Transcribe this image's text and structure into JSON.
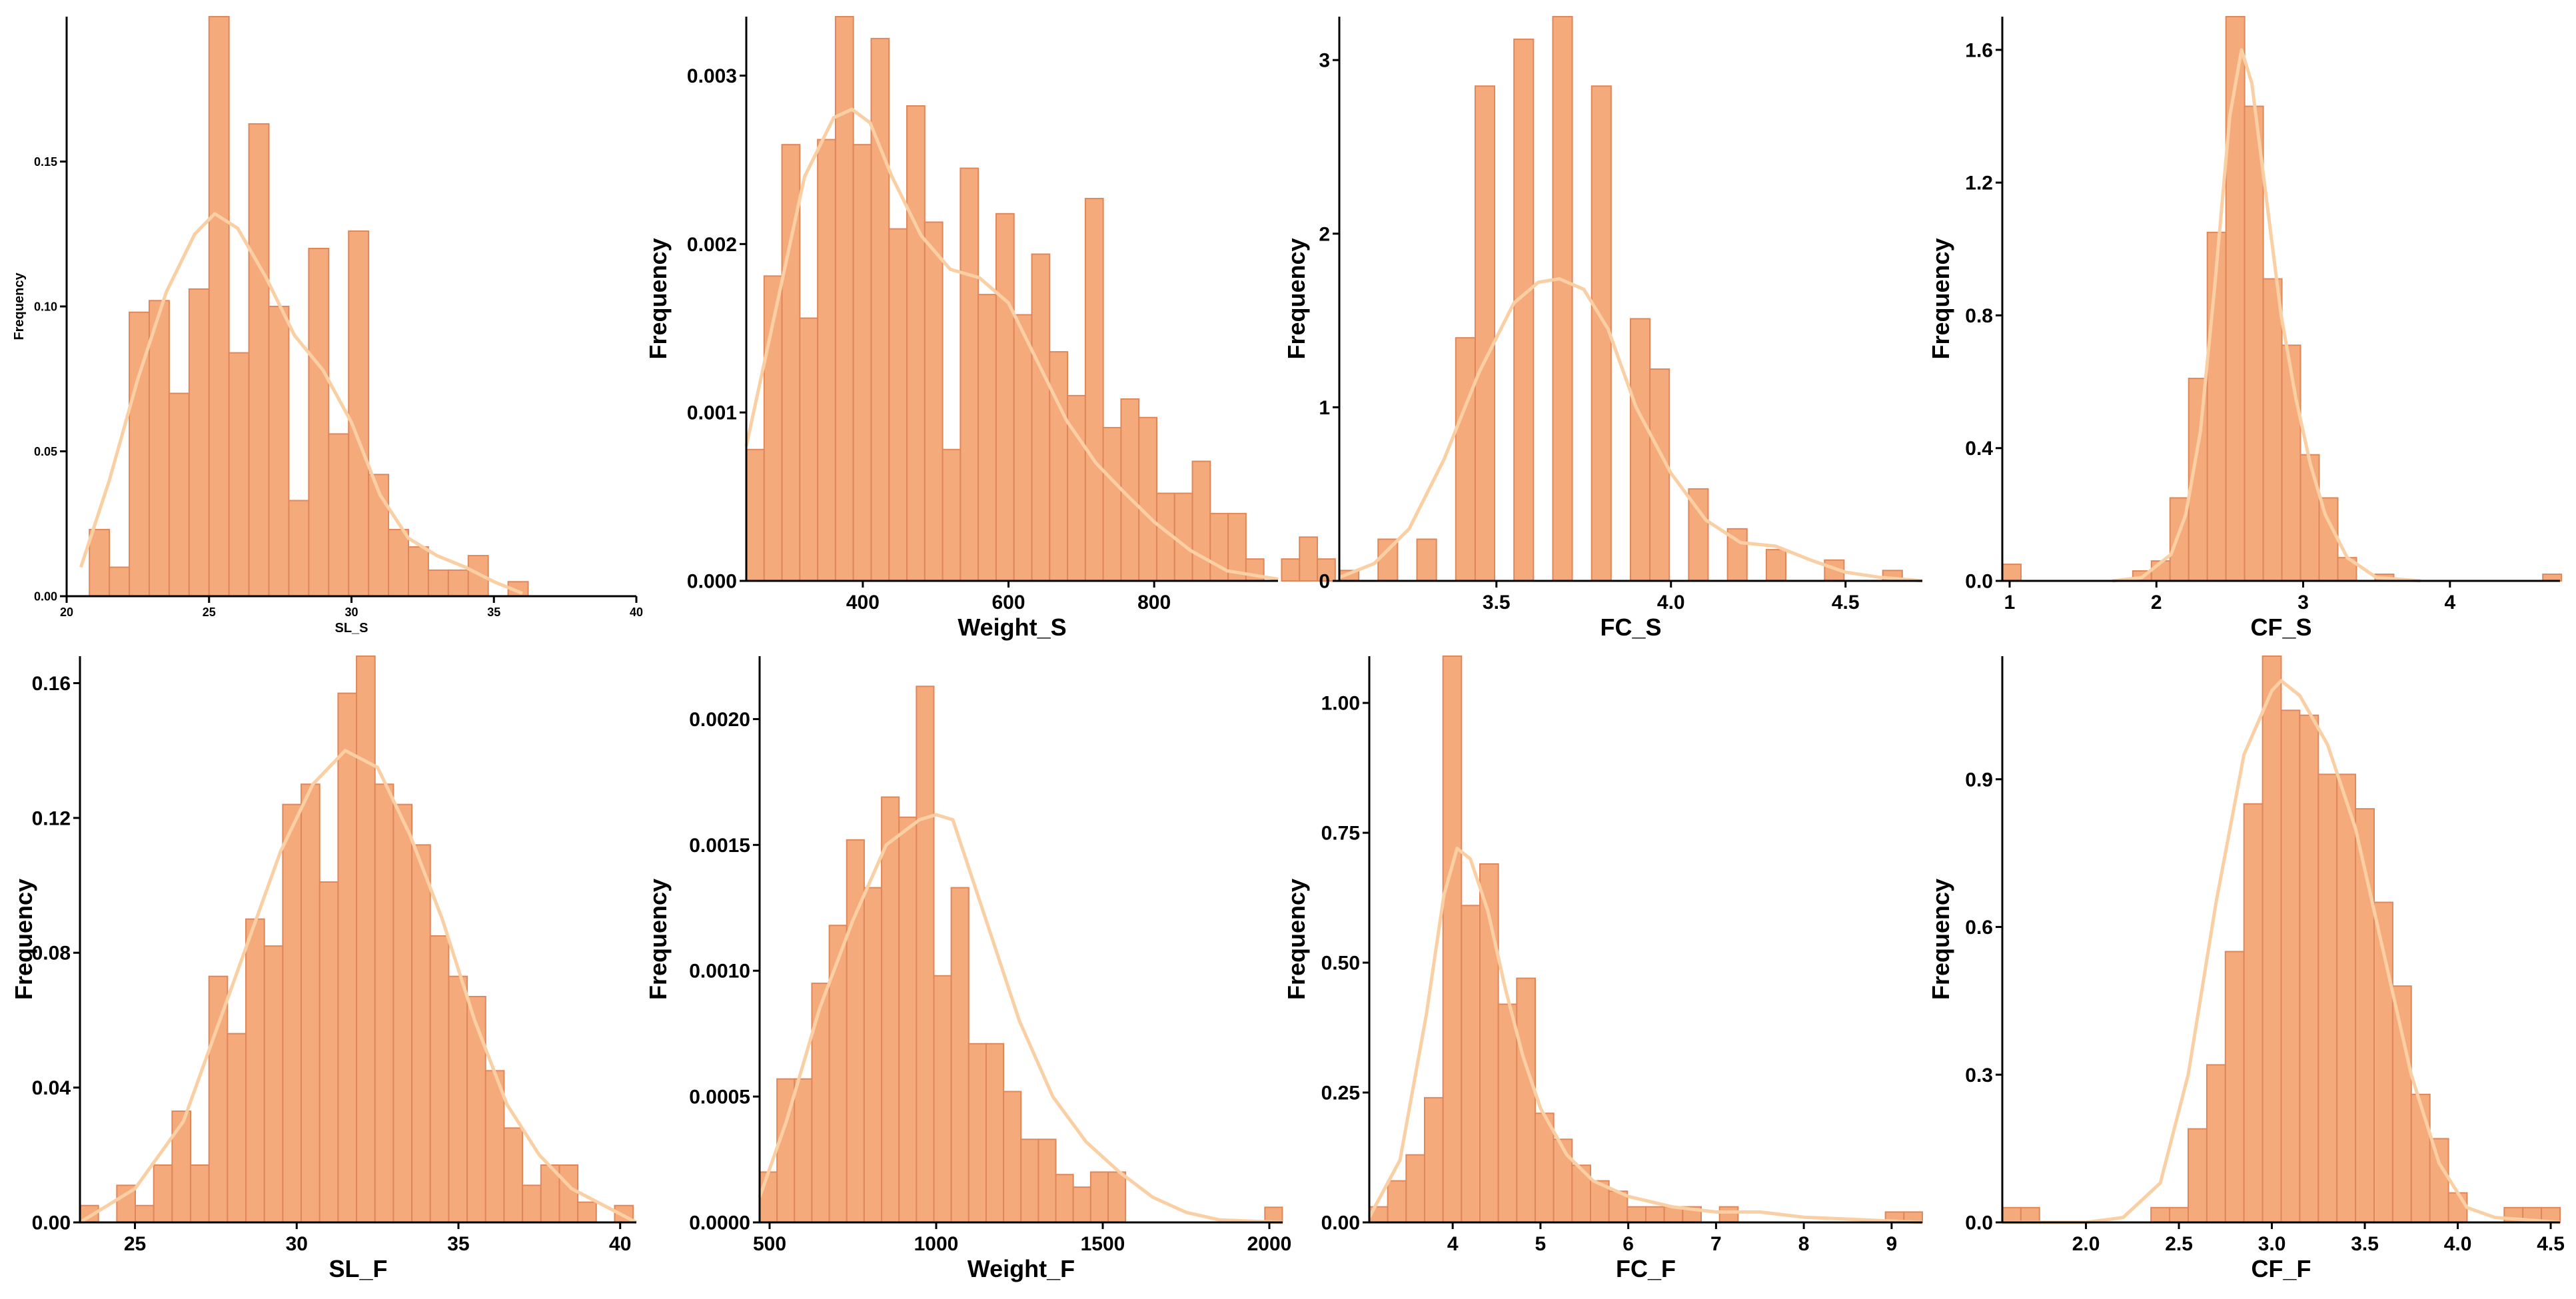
{
  "style": {
    "bar_fill": "#F5AA7C",
    "bar_stroke": "#E0875A",
    "density_color": "#F9CFA3",
    "axis_color": "#000000"
  },
  "chart_data": [
    {
      "type": "bar",
      "title": "",
      "xlabel": "SL_S",
      "ylabel": "Frequency",
      "xlim": [
        20,
        40
      ],
      "ylim": [
        0,
        0.2
      ],
      "xticks": [
        20,
        25,
        30,
        35,
        40
      ],
      "xtick_labels": [
        "20",
        "25",
        "30",
        "35",
        "40"
      ],
      "yticks": [
        0,
        0.05,
        0.1,
        0.15
      ],
      "ytick_labels": [
        "0.00",
        "0.05",
        "0.10",
        "0.15"
      ],
      "bin_start": 20.8,
      "bin_width": 0.7,
      "values": [
        0.023,
        0.01,
        0.098,
        0.102,
        0.07,
        0.106,
        0.2,
        0.084,
        0.163,
        0.1,
        0.033,
        0.12,
        0.056,
        0.126,
        0.042,
        0.023,
        0.017,
        0.009,
        0.009,
        0.014,
        0.0,
        0.005
      ],
      "density": {
        "x": [
          20.5,
          21.5,
          22.5,
          23.5,
          24.5,
          25.2,
          26,
          27,
          28,
          29,
          30,
          31,
          32,
          33,
          34,
          35,
          36
        ],
        "y": [
          0.01,
          0.04,
          0.075,
          0.105,
          0.125,
          0.132,
          0.127,
          0.11,
          0.09,
          0.078,
          0.06,
          0.035,
          0.02,
          0.014,
          0.01,
          0.005,
          0.001
        ]
      },
      "small_font": true
    },
    {
      "type": "bar",
      "title": "",
      "xlabel": "Weight_S",
      "ylabel": "Frequency",
      "xlim": [
        240,
        970
      ],
      "ylim": [
        0,
        0.00335
      ],
      "xticks": [
        400,
        600,
        800
      ],
      "xtick_labels": [
        "400",
        "600",
        "800"
      ],
      "yticks": [
        0,
        0.001,
        0.002,
        0.003
      ],
      "ytick_labels": [
        "0.000",
        "0.001",
        "0.002",
        "0.003"
      ],
      "bin_start": 240,
      "bin_width": 24.5,
      "values": [
        0.00078,
        0.00181,
        0.00259,
        0.00156,
        0.00262,
        0.00335,
        0.00259,
        0.00322,
        0.00209,
        0.00282,
        0.00213,
        0.00078,
        0.00245,
        0.0017,
        0.00218,
        0.00158,
        0.00194,
        0.00136,
        0.0011,
        0.00227,
        0.00091,
        0.00108,
        0.00097,
        0.00052,
        0.00052,
        0.00071,
        0.0004,
        0.0004,
        0.00013,
        0.0,
        0.00013,
        0.00026,
        0.00013,
        0.0
      ],
      "density": {
        "x": [
          240,
          280,
          320,
          360,
          385,
          410,
          440,
          480,
          520,
          560,
          600,
          640,
          680,
          720,
          760,
          800,
          850,
          900,
          970
        ],
        "y": [
          0.0008,
          0.0016,
          0.0024,
          0.00275,
          0.0028,
          0.00272,
          0.0024,
          0.00205,
          0.00185,
          0.0018,
          0.00165,
          0.0013,
          0.00095,
          0.0007,
          0.00052,
          0.00035,
          0.00018,
          6e-05,
          1e-05
        ]
      },
      "small_font": false
    },
    {
      "type": "bar",
      "title": "",
      "xlabel": "FC_S",
      "ylabel": "Frequency",
      "xlim": [
        3.05,
        4.72
      ],
      "ylim": [
        0,
        3.25
      ],
      "xticks": [
        3.5,
        4.0,
        4.5
      ],
      "xtick_labels": [
        "3.5",
        "4.0",
        "4.5"
      ],
      "yticks": [
        0,
        1,
        2,
        3
      ],
      "ytick_labels": [
        "0",
        "1",
        "2",
        "3"
      ],
      "bin_start": 3.05,
      "bin_width": 0.0556,
      "values": [
        0.06,
        0.0,
        0.24,
        0.0,
        0.24,
        0.0,
        1.4,
        2.85,
        0.0,
        3.12,
        0.0,
        3.25,
        0.0,
        2.85,
        0.0,
        1.51,
        1.22,
        0.0,
        0.53,
        0.0,
        0.3,
        0.0,
        0.18,
        0.0,
        0.0,
        0.12,
        0.0,
        0.0,
        0.06,
        0.0
      ],
      "density": {
        "x": [
          3.05,
          3.15,
          3.25,
          3.35,
          3.45,
          3.55,
          3.62,
          3.68,
          3.75,
          3.82,
          3.9,
          4.0,
          4.1,
          4.2,
          4.3,
          4.4,
          4.5,
          4.6,
          4.72
        ],
        "y": [
          0.02,
          0.1,
          0.3,
          0.7,
          1.2,
          1.6,
          1.72,
          1.74,
          1.68,
          1.45,
          1.0,
          0.62,
          0.35,
          0.22,
          0.2,
          0.12,
          0.05,
          0.02,
          0.0
        ]
      },
      "small_font": false
    },
    {
      "type": "bar",
      "title": "",
      "xlabel": "CF_S",
      "ylabel": "Frequency",
      "xlim": [
        0.95,
        4.75
      ],
      "ylim": [
        0,
        1.7
      ],
      "xticks": [
        1,
        2,
        3,
        4
      ],
      "xtick_labels": [
        "1",
        "2",
        "3",
        "4"
      ],
      "yticks": [
        0,
        0.4,
        0.8,
        1.2,
        1.6
      ],
      "ytick_labels": [
        "0.0",
        "0.4",
        "0.8",
        "1.2",
        "1.6"
      ],
      "bin_start": 0.95,
      "bin_width": 0.127,
      "values": [
        0.05,
        0.0,
        0.0,
        0.0,
        0.0,
        0.0,
        0.0,
        0.03,
        0.06,
        0.25,
        0.61,
        1.05,
        1.7,
        1.43,
        0.91,
        0.71,
        0.38,
        0.25,
        0.07,
        0.0,
        0.02,
        0.0,
        0.0,
        0.0,
        0.0,
        0.0,
        0.0,
        0.0,
        0.0,
        0.02
      ],
      "density": {
        "x": [
          1.7,
          1.9,
          2.1,
          2.2,
          2.3,
          2.4,
          2.5,
          2.58,
          2.65,
          2.75,
          2.85,
          2.95,
          3.05,
          3.15,
          3.3,
          3.5,
          3.8
        ],
        "y": [
          0.0,
          0.01,
          0.08,
          0.2,
          0.45,
          0.9,
          1.4,
          1.6,
          1.5,
          1.15,
          0.8,
          0.55,
          0.35,
          0.2,
          0.07,
          0.01,
          0.0
        ]
      },
      "small_font": false
    },
    {
      "type": "bar",
      "title": "",
      "xlabel": "SL_F",
      "ylabel": "Frequency",
      "xlim": [
        23.3,
        40.5
      ],
      "ylim": [
        0,
        0.168
      ],
      "xticks": [
        25,
        30,
        35,
        40
      ],
      "xtick_labels": [
        "25",
        "30",
        "35",
        "40"
      ],
      "yticks": [
        0,
        0.04,
        0.08,
        0.12,
        0.16
      ],
      "ytick_labels": [
        "0.00",
        "0.04",
        "0.08",
        "0.12",
        "0.16"
      ],
      "bin_start": 23.3,
      "bin_width": 0.57,
      "values": [
        0.005,
        0.0,
        0.011,
        0.005,
        0.017,
        0.033,
        0.017,
        0.073,
        0.056,
        0.09,
        0.082,
        0.124,
        0.13,
        0.101,
        0.157,
        0.168,
        0.13,
        0.124,
        0.112,
        0.085,
        0.073,
        0.067,
        0.045,
        0.028,
        0.011,
        0.017,
        0.017,
        0.006,
        0.0,
        0.005
      ],
      "density": {
        "x": [
          23.3,
          25,
          26.5,
          28,
          29.5,
          30.5,
          31.5,
          32.5,
          33.5,
          34.5,
          35.5,
          36.5,
          37.5,
          38.5,
          40.5
        ],
        "y": [
          0.0,
          0.01,
          0.03,
          0.07,
          0.11,
          0.13,
          0.14,
          0.135,
          0.115,
          0.09,
          0.06,
          0.035,
          0.02,
          0.01,
          0.0
        ]
      },
      "small_font": false
    },
    {
      "type": "bar",
      "title": "",
      "xlabel": "Weight_F",
      "ylabel": "Frequency",
      "xlim": [
        470,
        2040
      ],
      "ylim": [
        0,
        0.00225
      ],
      "xticks": [
        500,
        1000,
        1500,
        2000
      ],
      "xtick_labels": [
        "500",
        "1000",
        "1500",
        "2000"
      ],
      "yticks": [
        0,
        0.0005,
        0.001,
        0.0015,
        0.002
      ],
      "ytick_labels": [
        "0.0000",
        "0.0005",
        "0.0010",
        "0.0015",
        "0.0020"
      ],
      "bin_start": 470,
      "bin_width": 52.3,
      "values": [
        0.0002,
        0.00057,
        0.00057,
        0.00095,
        0.00118,
        0.00152,
        0.00133,
        0.00169,
        0.00161,
        0.00213,
        0.00098,
        0.00133,
        0.00071,
        0.00071,
        0.00052,
        0.00033,
        0.00033,
        0.00019,
        0.00014,
        0.0002,
        0.0002,
        0.0,
        0.0,
        0.0,
        0.0,
        0.0,
        0.0,
        0.0,
        0.0,
        6e-05
      ],
      "density": {
        "x": [
          470,
          550,
          650,
          750,
          850,
          950,
          1000,
          1050,
          1150,
          1250,
          1350,
          1450,
          1550,
          1650,
          1750,
          1850,
          2040
        ],
        "y": [
          0.0001,
          0.0004,
          0.00085,
          0.0012,
          0.0015,
          0.0016,
          0.00162,
          0.0016,
          0.0012,
          0.0008,
          0.0005,
          0.00032,
          0.0002,
          0.0001,
          4e-05,
          1e-05,
          0.0
        ]
      },
      "small_font": false
    },
    {
      "type": "bar",
      "title": "",
      "xlabel": "FC_F",
      "ylabel": "Frequency",
      "xlim": [
        3.05,
        9.35
      ],
      "ylim": [
        0,
        1.09
      ],
      "xticks": [
        4,
        5,
        6,
        7,
        8,
        9
      ],
      "xtick_labels": [
        "4",
        "5",
        "6",
        "7",
        "8",
        "9"
      ],
      "yticks": [
        0,
        0.25,
        0.5,
        0.75,
        1.0
      ],
      "ytick_labels": [
        "0.00",
        "0.25",
        "0.50",
        "0.75",
        "1.00"
      ],
      "bin_start": 3.05,
      "bin_width": 0.21,
      "values": [
        0.03,
        0.08,
        0.13,
        0.24,
        1.09,
        0.61,
        0.69,
        0.42,
        0.47,
        0.21,
        0.16,
        0.11,
        0.08,
        0.06,
        0.03,
        0.03,
        0.03,
        0.03,
        0.0,
        0.03,
        0.0,
        0.0,
        0.0,
        0.0,
        0.0,
        0.0,
        0.0,
        0.0,
        0.02,
        0.02
      ],
      "density": {
        "x": [
          3.05,
          3.4,
          3.7,
          3.9,
          4.05,
          4.2,
          4.4,
          4.6,
          4.8,
          5.0,
          5.3,
          5.6,
          6.0,
          6.5,
          7.0,
          7.5,
          8.0,
          9.35
        ],
        "y": [
          0.01,
          0.12,
          0.4,
          0.63,
          0.72,
          0.7,
          0.6,
          0.45,
          0.32,
          0.22,
          0.13,
          0.08,
          0.05,
          0.03,
          0.02,
          0.02,
          0.01,
          0.0
        ]
      },
      "small_font": false
    },
    {
      "type": "bar",
      "title": "",
      "xlabel": "CF_F",
      "ylabel": "Frequency",
      "xlim": [
        1.55,
        4.55
      ],
      "ylim": [
        0,
        1.15
      ],
      "xticks": [
        2.0,
        2.5,
        3.0,
        3.5,
        4.0,
        4.5
      ],
      "xtick_labels": [
        "2.0",
        "2.5",
        "3.0",
        "3.5",
        "4.0",
        "4.5"
      ],
      "yticks": [
        0,
        0.3,
        0.6,
        0.9
      ],
      "ytick_labels": [
        "0.0",
        "0.3",
        "0.6",
        "0.9"
      ],
      "bin_start": 1.55,
      "bin_width": 0.1,
      "values": [
        0.03,
        0.03,
        0.0,
        0.0,
        0.0,
        0.0,
        0.0,
        0.0,
        0.03,
        0.03,
        0.19,
        0.32,
        0.55,
        0.85,
        1.15,
        1.04,
        1.03,
        0.91,
        0.91,
        0.84,
        0.65,
        0.48,
        0.26,
        0.17,
        0.06,
        0.0,
        0.0,
        0.03,
        0.03,
        0.03
      ],
      "density": {
        "x": [
          1.55,
          2.0,
          2.2,
          2.4,
          2.55,
          2.7,
          2.85,
          3.0,
          3.05,
          3.15,
          3.3,
          3.45,
          3.6,
          3.75,
          3.9,
          4.05,
          4.2,
          4.55
        ],
        "y": [
          0.0,
          0.0,
          0.01,
          0.08,
          0.3,
          0.65,
          0.95,
          1.08,
          1.1,
          1.07,
          0.97,
          0.8,
          0.55,
          0.3,
          0.12,
          0.03,
          0.01,
          0.0
        ]
      },
      "small_font": false
    }
  ]
}
